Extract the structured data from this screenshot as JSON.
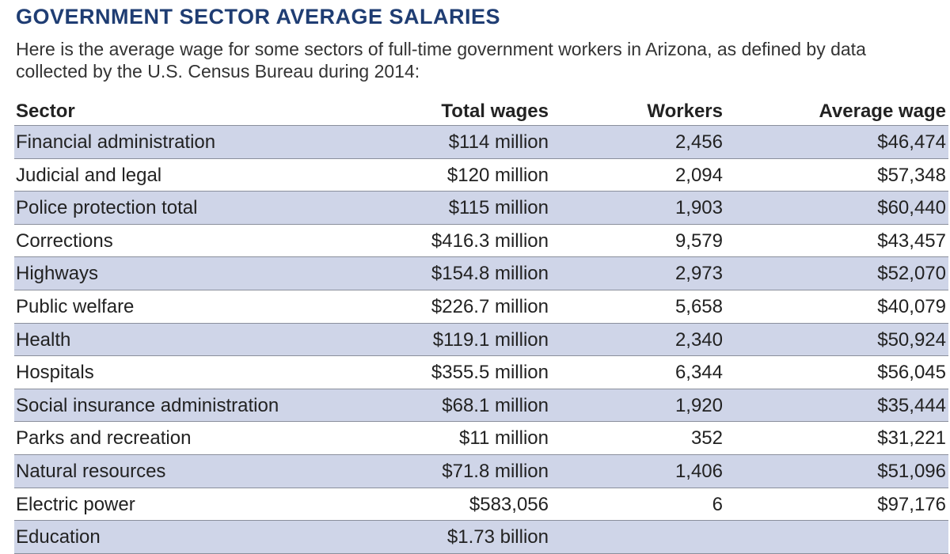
{
  "title": "GOVERNMENT SECTOR AVERAGE SALARIES",
  "subtitle": "Here is the average wage for some sectors of full-time government workers in Arizona, as defined by data collected by the U.S. Census Bureau during 2014:",
  "colors": {
    "title": "#1f3d73",
    "row_shade": "#cfd5e8"
  },
  "table": {
    "headers": [
      "Sector",
      "Total wages",
      "Workers",
      "Average wage"
    ],
    "rows": [
      [
        "Financial administration",
        "$114 million",
        "2,456",
        "$46,474"
      ],
      [
        "Judicial and legal",
        "$120 million",
        "2,094",
        "$57,348"
      ],
      [
        "Police protection total",
        "$115 million",
        "1,903",
        "$60,440"
      ],
      [
        "Corrections",
        "$416.3 million",
        "9,579",
        "$43,457"
      ],
      [
        "Highways",
        "$154.8 million",
        "2,973",
        "$52,070"
      ],
      [
        "Public welfare",
        "$226.7 million",
        "5,658",
        "$40,079"
      ],
      [
        "Health",
        "$119.1 million",
        "2,340",
        "$50,924"
      ],
      [
        "Hospitals",
        "$355.5 million",
        "6,344",
        "$56,045"
      ],
      [
        "Social insurance administration",
        "$68.1 million",
        "1,920",
        "$35,444"
      ],
      [
        "Parks and recreation",
        "$11 million",
        "352",
        "$31,221"
      ],
      [
        "Natural resources",
        "$71.8 million",
        "1,406",
        "$51,096"
      ],
      [
        "Electric power",
        "$583,056",
        "6",
        "$97,176"
      ],
      [
        "Education",
        "$1.73 billion",
        "",
        ""
      ]
    ]
  }
}
